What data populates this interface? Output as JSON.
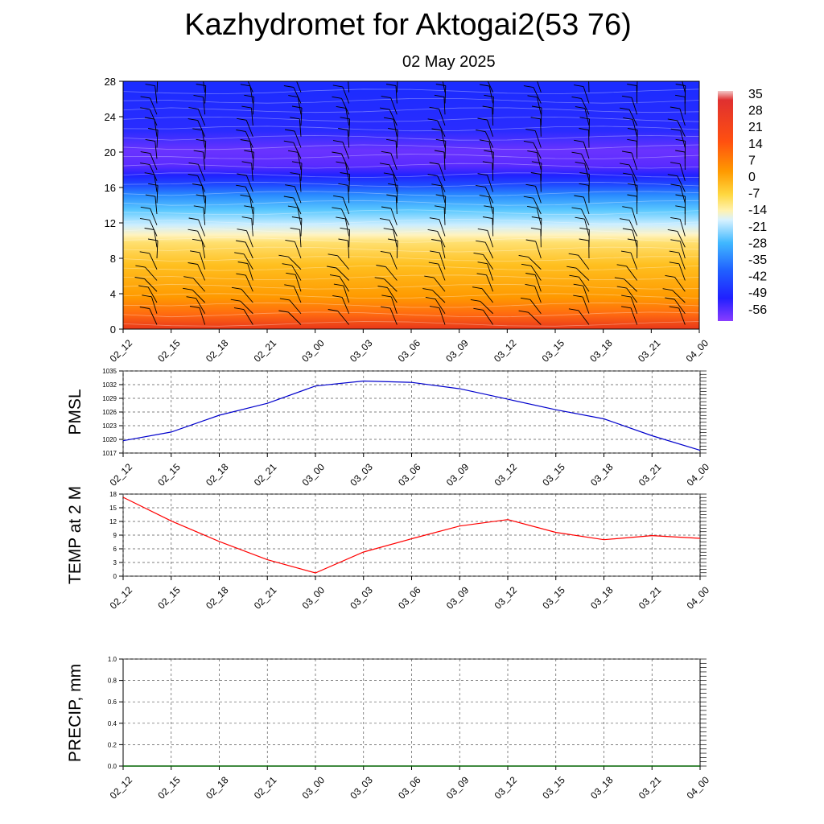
{
  "header": {
    "title": "Kazhydromet for Aktogai2(53 76)",
    "date": "02 May 2025"
  },
  "chart_data": [
    {
      "type": "heatmap",
      "id": "cross-section",
      "x_categories": [
        "02_12",
        "02_15",
        "02_18",
        "02_21",
        "03_00",
        "03_03",
        "03_06",
        "03_09",
        "03_12",
        "03_15",
        "03_18",
        "03_21",
        "04_00"
      ],
      "y_ticks": [
        0,
        4,
        8,
        12,
        16,
        20,
        24,
        28
      ],
      "ylim": [
        0,
        28
      ],
      "colorbar_labels": [
        "35",
        "28",
        "21",
        "14",
        "7",
        "0",
        "-7",
        "-14",
        "-21",
        "-28",
        "-35",
        "-42",
        "-49",
        "-56"
      ],
      "temperature_profile": {
        "heights": [
          0,
          4,
          8,
          10,
          11,
          12,
          14,
          16,
          17,
          18,
          20,
          22,
          24,
          28
        ],
        "values": [
          10,
          3,
          -3,
          -8,
          -13,
          -18,
          -30,
          -45,
          -55,
          -62,
          -60,
          -58,
          -55,
          -50
        ]
      },
      "colors": {
        "warm": "#e8361a",
        "orange": "#ff9a00",
        "yellow": "#ffea70",
        "light_blue": "#b8e6ff",
        "cyan": "#33aaff",
        "blue": "#1a2cff",
        "violet": "#8a3cff",
        "barb": "#000000"
      }
    },
    {
      "type": "line",
      "id": "pmsl",
      "ylabel": "PMSL",
      "ylim": [
        1017,
        1035
      ],
      "y_ticks": [
        "1017",
        "1020",
        "1023",
        "1026",
        "1029",
        "1032",
        "1035"
      ],
      "categories": [
        "02_12",
        "02_15",
        "02_18",
        "02_21",
        "03_00",
        "03_03",
        "03_06",
        "03_09",
        "03_12",
        "03_15",
        "03_18",
        "03_21",
        "04_00"
      ],
      "values": [
        1019.7,
        1021.6,
        1025.3,
        1027.9,
        1031.7,
        1032.8,
        1032.5,
        1031.1,
        1028.8,
        1026.5,
        1024.5,
        1020.8,
        1017.6
      ],
      "color": "#0000cc"
    },
    {
      "type": "line",
      "id": "temp2m",
      "ylabel": "TEMP at 2 M",
      "ylim": [
        0,
        18
      ],
      "y_ticks": [
        "0",
        "3",
        "6",
        "9",
        "12",
        "15",
        "18"
      ],
      "categories": [
        "02_12",
        "02_15",
        "02_18",
        "02_21",
        "03_00",
        "03_03",
        "03_06",
        "03_09",
        "03_12",
        "03_15",
        "03_18",
        "03_21",
        "04_00"
      ],
      "values": [
        17.3,
        12.1,
        7.6,
        3.6,
        0.7,
        5.3,
        8.2,
        11.0,
        12.4,
        9.6,
        8.0,
        8.9,
        8.3
      ],
      "color": "#ff0000"
    },
    {
      "type": "line",
      "id": "precip",
      "ylabel": "PRECIP, mm",
      "ylim": [
        0,
        1
      ],
      "y_ticks": [
        "0.0",
        "0.2",
        "0.4",
        "0.6",
        "0.8",
        "1.0"
      ],
      "categories": [
        "02_12",
        "02_15",
        "02_18",
        "02_21",
        "03_00",
        "03_03",
        "03_06",
        "03_09",
        "03_12",
        "03_15",
        "03_18",
        "03_21",
        "04_00"
      ],
      "values": [
        0,
        0,
        0,
        0,
        0,
        0,
        0,
        0,
        0,
        0,
        0,
        0,
        0
      ],
      "color": "#006400"
    }
  ]
}
